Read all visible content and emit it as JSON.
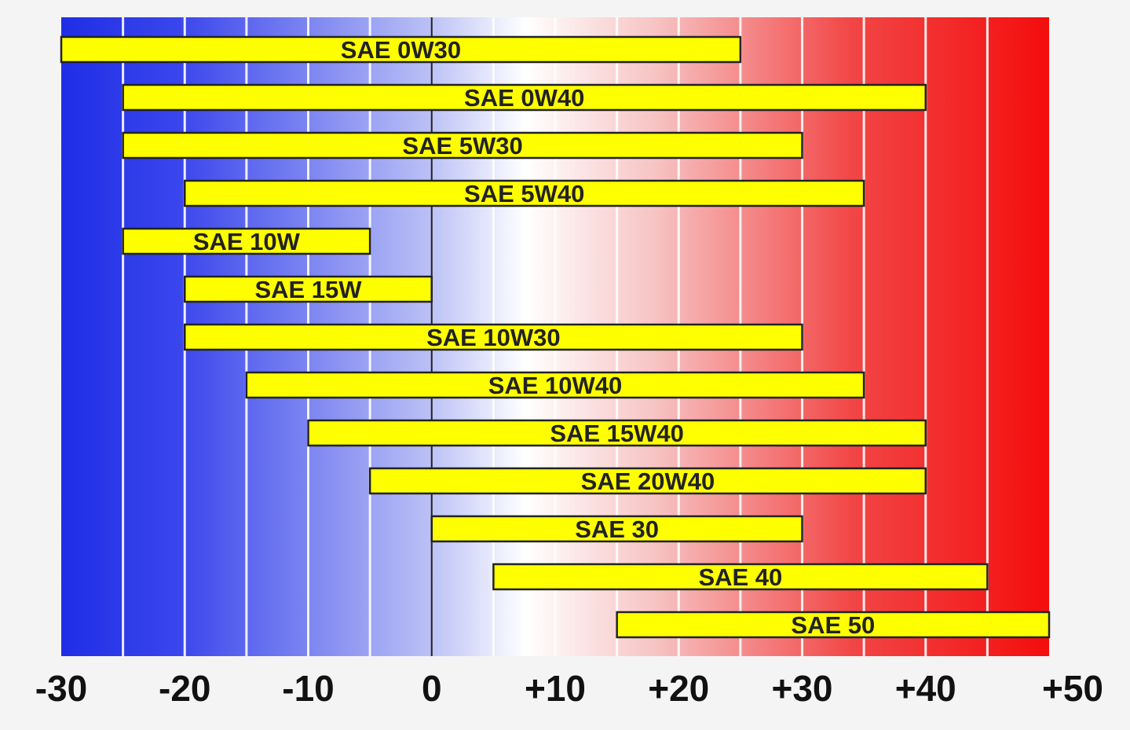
{
  "chart_data": {
    "type": "bar",
    "orientation": "horizontal-range",
    "title": "",
    "xlabel": "",
    "ylabel": "",
    "xlim": [
      -30,
      50
    ],
    "x_ticks": [
      -30,
      -20,
      -10,
      0,
      10,
      20,
      30,
      40,
      50
    ],
    "x_tick_labels": [
      "-30",
      "-20",
      "-10",
      "0",
      "+10",
      "+20",
      "+30",
      "+40",
      "+50"
    ],
    "grid": true,
    "background": "temperature gradient, blue (cold) to red (hot)",
    "colors": {
      "cold": "#1f2ee6",
      "neutral": "#ffffff",
      "hot": "#f40d0d",
      "bar": "#ffff00",
      "bar_border": "#222222"
    },
    "series": [
      {
        "name": "SAE 0W30",
        "min": -30,
        "max": 25
      },
      {
        "name": "SAE 0W40",
        "min": -25,
        "max": 40
      },
      {
        "name": "SAE 5W30",
        "min": -25,
        "max": 30
      },
      {
        "name": "SAE 5W40",
        "min": -20,
        "max": 35
      },
      {
        "name": "SAE 10W",
        "min": -25,
        "max": -5
      },
      {
        "name": "SAE 15W",
        "min": -20,
        "max": 0
      },
      {
        "name": "SAE 10W30",
        "min": -20,
        "max": 30
      },
      {
        "name": "SAE 10W40",
        "min": -15,
        "max": 35
      },
      {
        "name": "SAE 15W40",
        "min": -10,
        "max": 40
      },
      {
        "name": "SAE 20W40",
        "min": -5,
        "max": 40
      },
      {
        "name": "SAE 30",
        "min": 0,
        "max": 30
      },
      {
        "name": "SAE 40",
        "min": 5,
        "max": 45
      },
      {
        "name": "SAE 50",
        "min": 15,
        "max": 50
      }
    ]
  }
}
